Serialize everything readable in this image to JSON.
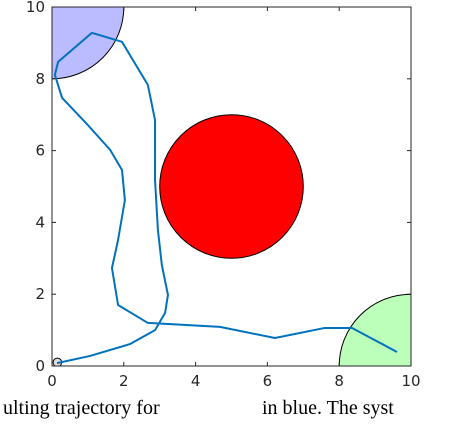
{
  "chart_data": {
    "type": "line",
    "xlim": [
      0,
      10
    ],
    "ylim": [
      0,
      10
    ],
    "xticks": [
      0,
      2,
      4,
      6,
      8,
      10
    ],
    "yticks": [
      0,
      2,
      4,
      6,
      8,
      10
    ],
    "circles": [
      {
        "x": 0,
        "y": 10,
        "r": 2,
        "color": "#bbbbff"
      },
      {
        "x": 5,
        "y": 5,
        "r": 2,
        "color": "#ff0000"
      },
      {
        "x": 10,
        "y": 0,
        "r": 2,
        "color": "#bbffbb"
      },
      {
        "x": 0.15,
        "y": 0.1,
        "r": 0.12,
        "color": "#dddddd"
      }
    ],
    "series": [
      {
        "color": "#0072bd",
        "x": [
          0.14,
          1.06,
          2.17,
          2.87,
          3.15,
          3.23,
          3.06,
          2.95,
          2.87,
          2.87,
          2.67,
          1.95,
          1.11,
          0.17,
          0.08,
          0.28,
          1.0,
          1.62,
          1.95,
          2.03,
          1.84,
          1.67,
          1.84,
          2.67,
          4.68,
          6.21,
          7.6,
          8.36,
          9.61
        ],
        "values": [
          0.08,
          0.28,
          0.61,
          1.0,
          1.48,
          1.98,
          2.81,
          3.79,
          5.18,
          6.85,
          7.83,
          9.03,
          9.28,
          8.47,
          8.11,
          7.47,
          6.71,
          6.02,
          5.46,
          4.62,
          3.51,
          2.73,
          1.7,
          1.2,
          1.09,
          0.78,
          1.06,
          1.06,
          0.39
        ]
      }
    ],
    "caption": [
      "ulting trajectory for",
      "in blue. The syst"
    ]
  }
}
